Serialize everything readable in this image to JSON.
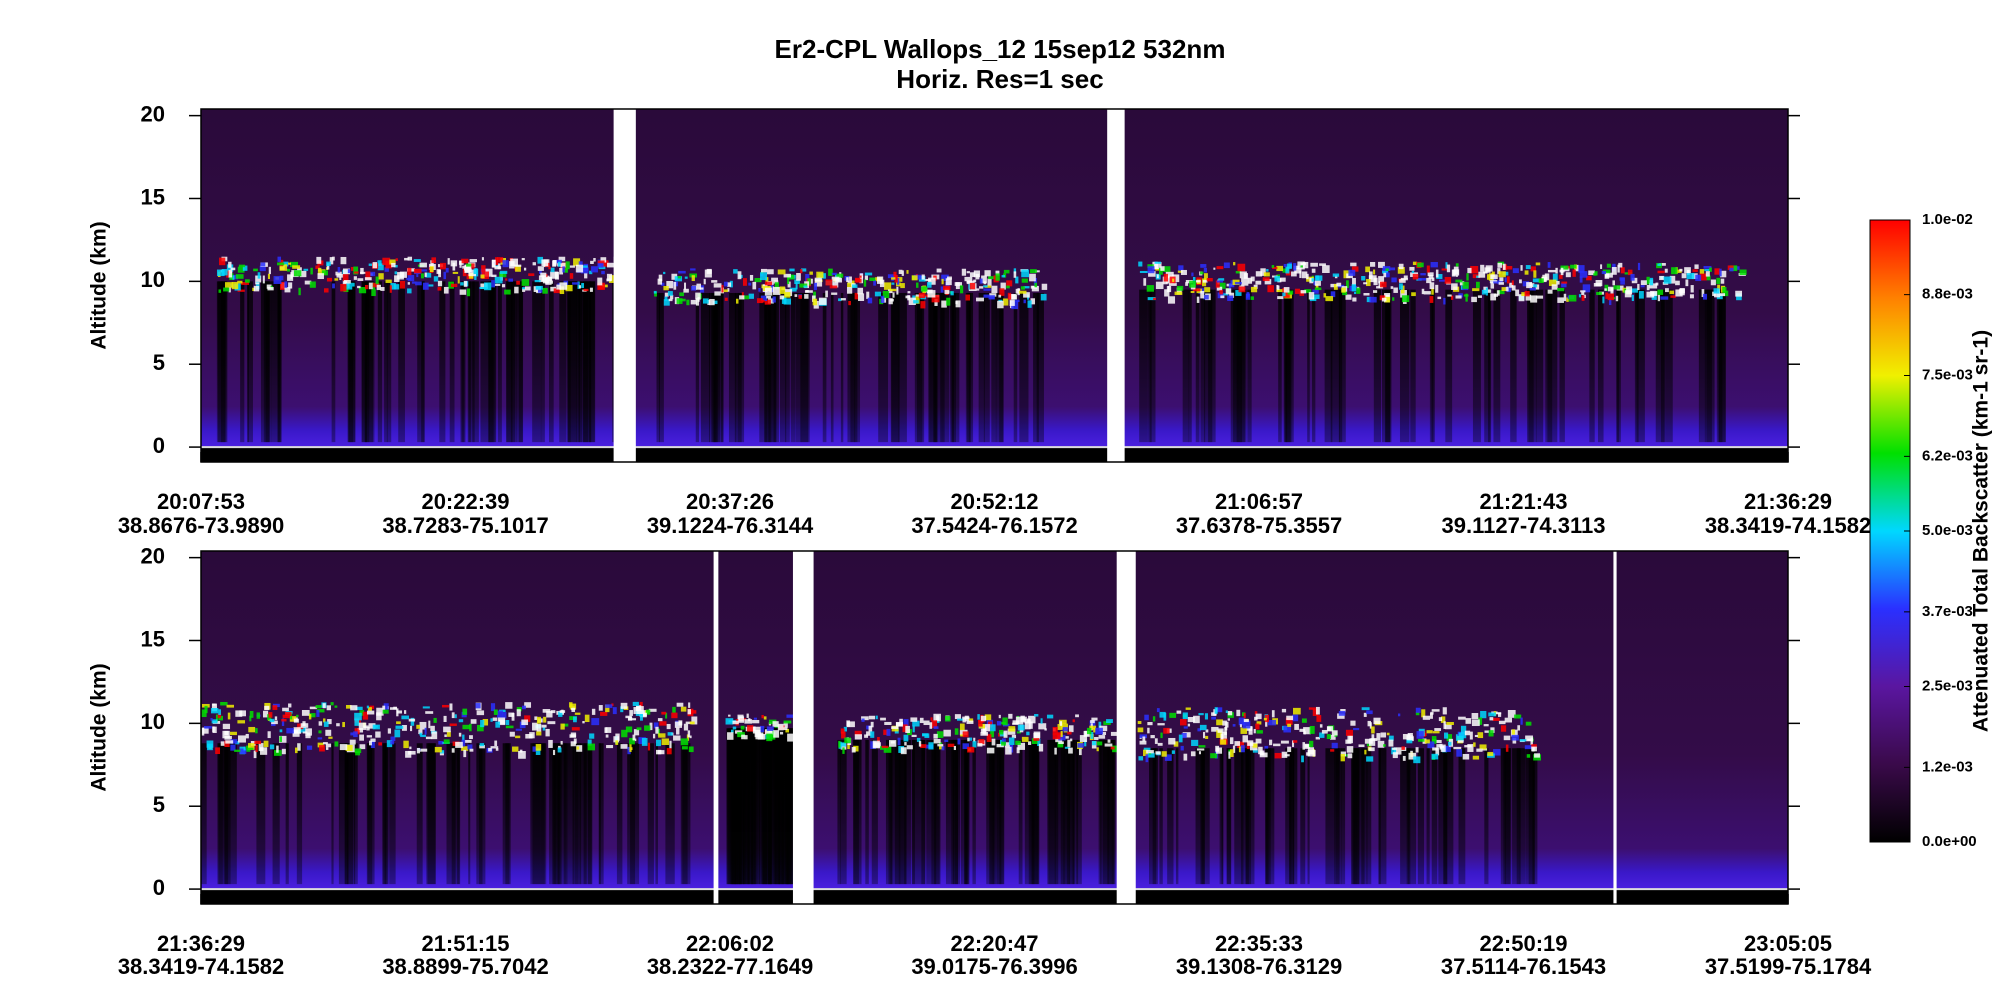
{
  "chart_data": [
    {
      "type": "heatmap",
      "title": "Er2-CPL  Wallops_12  15sep12  532nm",
      "subtitle": "Horiz. Res=1 sec",
      "ylabel": "Altitude (km)",
      "ylim": [
        -0.9,
        20.4
      ],
      "yticks": [
        0,
        5,
        10,
        15,
        20
      ],
      "categories": [
        "20:07:53",
        "20:22:39",
        "20:37:26",
        "20:52:12",
        "21:06:57",
        "21:21:43",
        "21:36:29"
      ],
      "coordinates": [
        "38.8676-73.9890",
        "38.7283-75.1017",
        "39.1224-76.3144",
        "37.5424-76.1572",
        "37.6378-75.3557",
        "39.1127-74.3113",
        "38.3419-74.1582"
      ]
    },
    {
      "type": "heatmap",
      "ylabel": "Altitude (km)",
      "ylim": [
        -0.9,
        20.4
      ],
      "yticks": [
        0,
        5,
        10,
        15,
        20
      ],
      "categories": [
        "21:36:29",
        "21:51:15",
        "22:06:02",
        "22:20:47",
        "22:35:33",
        "22:50:19",
        "23:05:05"
      ],
      "coordinates": [
        "38.3419-74.1582",
        "38.8899-75.7042",
        "38.2322-77.1649",
        "39.0175-76.3996",
        "39.1308-76.3129",
        "37.5114-76.1543",
        "37.5199-75.1784"
      ]
    }
  ],
  "colorbar": {
    "label": "Attenuated Total Backscatter (km-1 sr-1)",
    "lim": [
      0,
      0.01
    ],
    "colors": [
      "#000000",
      "#3a0a4a",
      "#5a16a0",
      "#2a30ff",
      "#00d8ff",
      "#00e000",
      "#f0f000",
      "#ff8000",
      "#ff0000"
    ],
    "ticks": [
      {
        "value": 0,
        "label": "0.0e+00"
      },
      {
        "value": 0.0012,
        "label": "1.2e-03"
      },
      {
        "value": 0.0025,
        "label": "2.5e-03"
      },
      {
        "value": 0.0037,
        "label": "3.7e-03"
      },
      {
        "value": 0.005,
        "label": "5.0e-03"
      },
      {
        "value": 0.0062,
        "label": "6.2e-03"
      },
      {
        "value": 0.0075,
        "label": "7.5e-03"
      },
      {
        "value": 0.0088,
        "label": "8.8e-03"
      },
      {
        "value": 0.01,
        "label": "1.0e-02"
      }
    ]
  }
}
